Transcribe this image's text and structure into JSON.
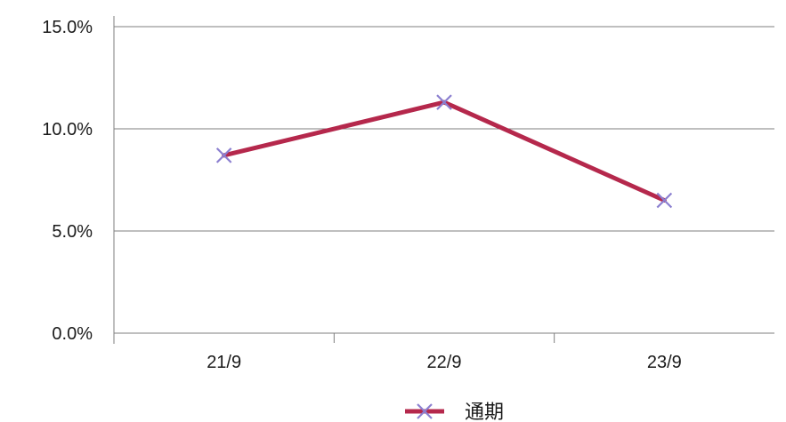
{
  "chart_data": {
    "type": "line",
    "title": "",
    "xlabel": "",
    "ylabel": "",
    "categories": [
      "21/9",
      "22/9",
      "23/9"
    ],
    "series": [
      {
        "name": "通期",
        "values": [
          8.7,
          11.3,
          6.5
        ]
      }
    ],
    "ylim": [
      0,
      15
    ],
    "yticks": [
      0,
      5,
      10,
      15
    ],
    "ytick_labels": [
      "0.0%",
      "5.0%",
      "10.0%",
      "15.0%"
    ],
    "grid": "horizontal",
    "legend": "bottom-center",
    "colors": {
      "line": "#b5284c",
      "marker": "#8b7fd0",
      "grid": "#7f7f7f",
      "axis": "#7f7f7f"
    }
  }
}
